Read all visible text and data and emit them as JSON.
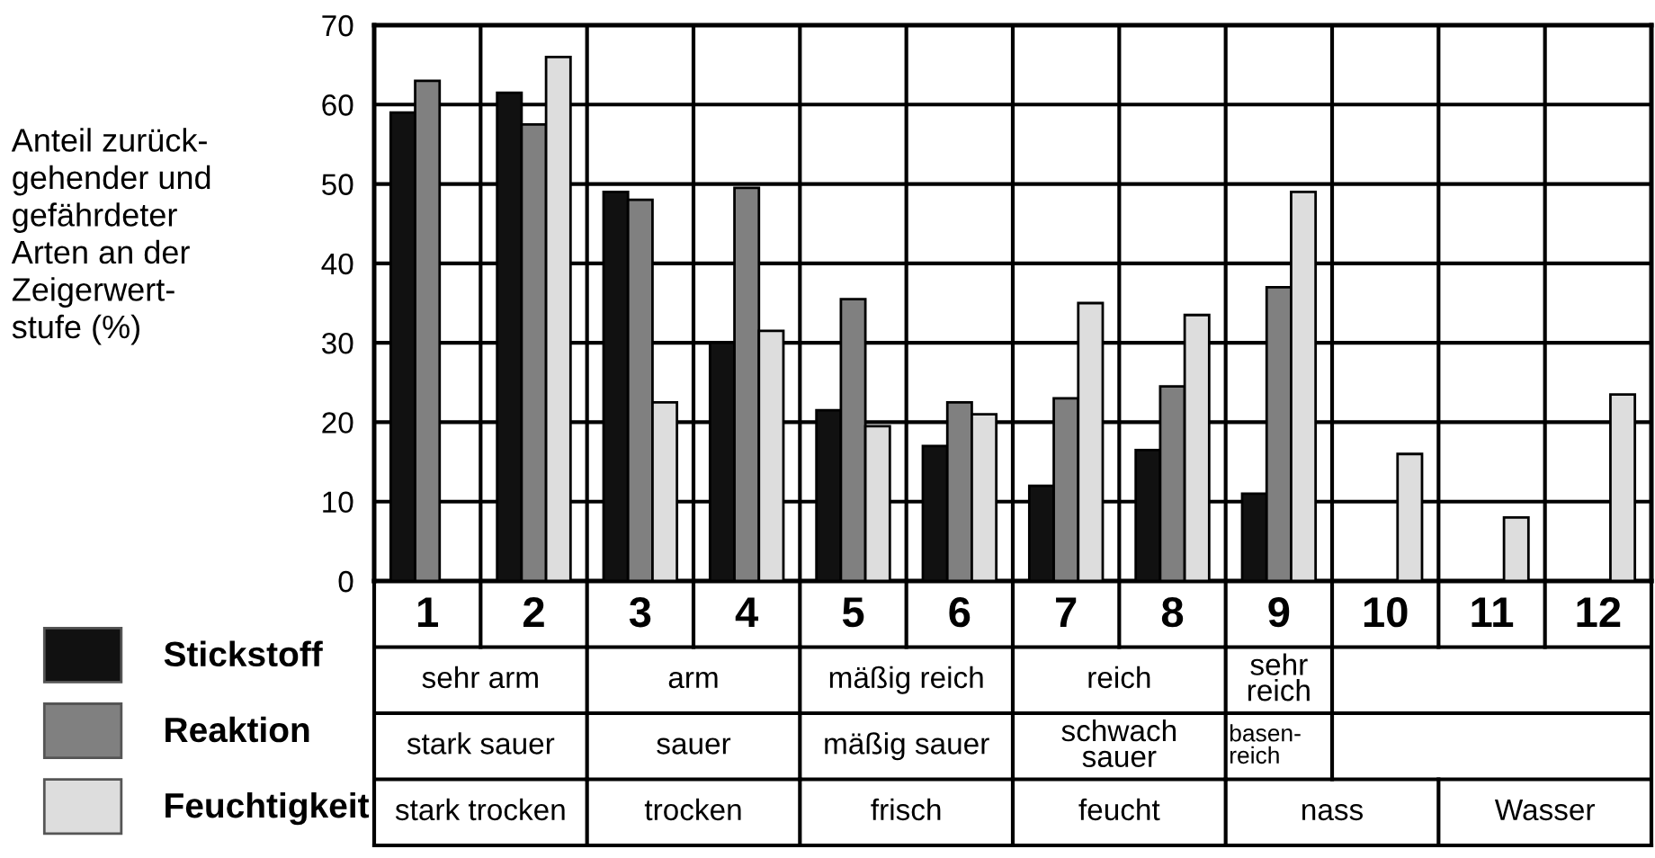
{
  "chart_data": {
    "type": "bar",
    "ylabel": "Anteil zurück-\ngehender und\ngefährdeter\nArten an der\nZeigerwert-\nstufe (%)",
    "categories": [
      "1",
      "2",
      "3",
      "4",
      "5",
      "6",
      "7",
      "8",
      "9",
      "10",
      "11",
      "12"
    ],
    "series": [
      {
        "name": "Stickstoff",
        "color": "#111111",
        "values": [
          59,
          61.5,
          49,
          30,
          21.5,
          17,
          12,
          16.5,
          11,
          null,
          null,
          null
        ]
      },
      {
        "name": "Reaktion",
        "color": "#808080",
        "values": [
          63,
          57.5,
          48,
          49.5,
          35.5,
          22.5,
          23,
          24.5,
          37,
          null,
          null,
          null
        ]
      },
      {
        "name": "Feuchtigkeit",
        "color": "#dddddd",
        "values": [
          null,
          66,
          22.5,
          31.5,
          19.5,
          21,
          35,
          33.5,
          49,
          16,
          8,
          23.5
        ]
      }
    ],
    "ylim": [
      0,
      70
    ],
    "yticks": [
      0,
      10,
      20,
      30,
      40,
      50,
      60,
      70
    ],
    "grid": true,
    "legend": "bottom left",
    "annotations": [
      "sehr arm",
      "arm",
      "mäßig reich",
      "reich",
      "sehr\nreich",
      "stark sauer",
      "sauer",
      "mäßig sauer",
      "schwach\nsauer",
      "basen-\nreich",
      "stark trocken",
      "trocken",
      "frisch",
      "feucht",
      "nass",
      "Wasser"
    ]
  }
}
